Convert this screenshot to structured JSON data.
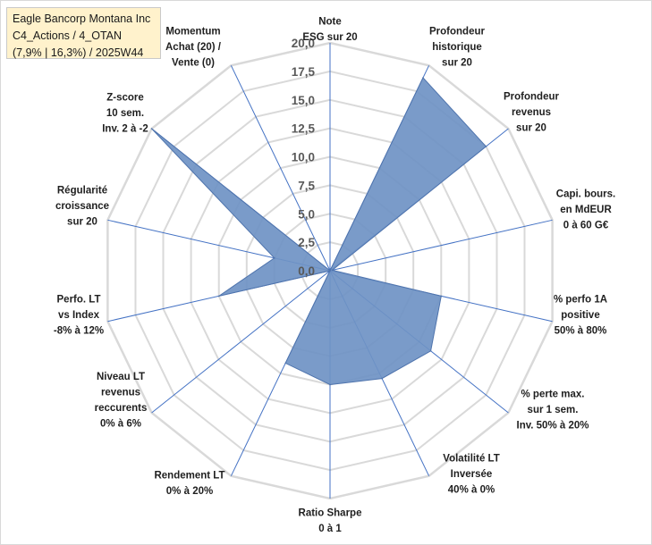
{
  "title": {
    "line1": "Eagle Bancorp Montana Inc",
    "line2": "C4_Actions / 4_OTAN",
    "line3": "(7,9% | 16,3%) / 2025W44"
  },
  "colors": {
    "fill": "#6f93c4",
    "stroke": "#4f74ad",
    "spoke": "#4472c4",
    "grid": "#d9d9d9",
    "title_bg": "#fff2cc"
  },
  "chart_data": {
    "type": "radar",
    "range": [
      0,
      20
    ],
    "tick_labels": [
      "0,0",
      "2,5",
      "5,0",
      "7,5",
      "10,0",
      "12,5",
      "15,0",
      "17,5",
      "20,0"
    ],
    "axes": [
      [
        "Note",
        "ESG sur 20"
      ],
      [
        "Profondeur",
        "historique",
        "sur 20"
      ],
      [
        "Profondeur",
        "revenus",
        "sur 20"
      ],
      [
        "Capi. bours.",
        "en MdEUR",
        "0 à 60 G€"
      ],
      [
        "% perfo 1A",
        "positive",
        "50% à 80%"
      ],
      [
        "% perte max.",
        "sur 1 sem.",
        "Inv. 50% à 20%"
      ],
      [
        "Volatilité LT",
        "Inversée",
        "40% à 0%"
      ],
      [
        "Ratio Sharpe",
        "0 à 1"
      ],
      [
        "Rendement LT",
        "0% à 20%"
      ],
      [
        "Niveau LT",
        "revenus",
        "reccurents",
        "0% à 6%"
      ],
      [
        "Perfo. LT",
        "vs Index",
        "-8% à 12%"
      ],
      [
        "Régularité",
        "croissance",
        "sur 20"
      ],
      [
        "Z-score",
        "10 sem.",
        "Inv. 2 à -2"
      ],
      [
        "Momentum",
        "Achat (20) /",
        "Vente (0)"
      ]
    ],
    "values": [
      0,
      18.8,
      17.5,
      0.2,
      10.0,
      11.3,
      10.5,
      10.0,
      9.0,
      0,
      10.0,
      5.0,
      20.0,
      0
    ]
  }
}
